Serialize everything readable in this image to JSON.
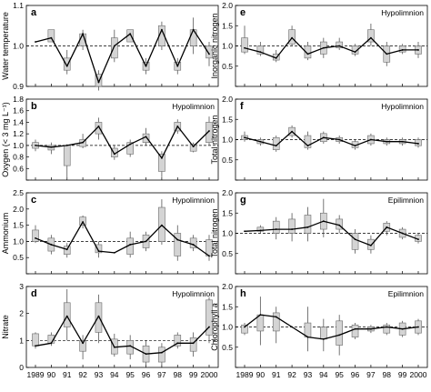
{
  "figure": {
    "x_tick_labels": [
      "1989",
      "90",
      "91",
      "92",
      "93",
      "94",
      "95",
      "96",
      "97",
      "98",
      "99",
      "2000"
    ],
    "box_color": "#d4d4d4",
    "line_color": "#000000"
  },
  "chart_data": [
    {
      "type": "line",
      "panel_letter": "a",
      "ylabel": "Water temperature",
      "subtitle": "",
      "ylim": [
        0.9,
        1.1
      ],
      "y_ticks": [
        0.9,
        1.0,
        1.1
      ],
      "y_tick_labels": [
        "0.9",
        "1.0",
        "1.1"
      ],
      "reference_line": 1.0,
      "x": [
        "1989",
        "90",
        "91",
        "92",
        "93",
        "94",
        "95",
        "96",
        "97",
        "98",
        "99",
        "2000"
      ],
      "series": [
        {
          "values": [
            1.01,
            1.02,
            0.95,
            1.03,
            0.91,
            1.0,
            1.03,
            0.95,
            1.04,
            0.95,
            1.04,
            0.98
          ]
        }
      ],
      "boxes": [
        null,
        [
          1.01,
          1.04
        ],
        [
          0.94,
          0.97
        ],
        [
          1.0,
          1.03
        ],
        [
          0.9,
          0.93
        ],
        [
          0.97,
          1.02
        ],
        [
          1.01,
          1.04
        ],
        [
          0.94,
          0.96
        ],
        [
          1.0,
          1.05
        ],
        [
          0.94,
          0.96
        ],
        [
          1.0,
          1.04
        ],
        [
          0.97,
          1.0
        ]
      ],
      "whiskers": [
        null,
        null,
        [
          0.93,
          0.99
        ],
        [
          0.99,
          1.04
        ],
        [
          0.89,
          0.94
        ],
        [
          0.96,
          1.04
        ],
        null,
        [
          0.93,
          0.97
        ],
        [
          0.99,
          1.06
        ],
        [
          0.93,
          0.97
        ],
        [
          0.98,
          1.07
        ],
        [
          0.95,
          1.01
        ]
      ]
    },
    {
      "type": "line",
      "panel_letter": "b",
      "ylabel": "Oxygen (< 3 mg L⁻¹)",
      "subtitle": "Hypolimnion",
      "ylim": [
        0.4,
        1.8
      ],
      "y_ticks": [
        0.4,
        0.6,
        0.8,
        1.0,
        1.2,
        1.4,
        1.6,
        1.8
      ],
      "y_tick_labels": [
        "",
        "0.6",
        "0.8",
        "1.0",
        "1.2",
        "1.4",
        "1.6",
        "1.8"
      ],
      "reference_line": 1.0,
      "x": [
        "1989",
        "90",
        "91",
        "92",
        "93",
        "94",
        "95",
        "96",
        "97",
        "98",
        "99",
        "2000"
      ],
      "series": [
        {
          "values": [
            1.0,
            0.97,
            1.0,
            1.05,
            1.33,
            0.85,
            1.02,
            1.15,
            0.78,
            1.33,
            0.98,
            1.25
          ]
        }
      ],
      "boxes": [
        [
          0.95,
          1.05
        ],
        [
          0.92,
          1.0
        ],
        [
          0.65,
          1.0
        ],
        [
          0.98,
          1.1
        ],
        [
          1.2,
          1.4
        ],
        [
          0.8,
          0.95
        ],
        [
          0.85,
          1.05
        ],
        [
          1.05,
          1.2
        ],
        [
          0.55,
          0.85
        ],
        [
          1.25,
          1.4
        ],
        [
          0.9,
          1.02
        ],
        [
          1.05,
          1.4
        ]
      ],
      "whiskers": [
        [
          0.9,
          1.1
        ],
        [
          0.85,
          1.05
        ],
        [
          0.42,
          1.02
        ],
        [
          0.95,
          1.2
        ],
        [
          1.1,
          1.48
        ],
        [
          0.75,
          1.0
        ],
        [
          0.8,
          1.1
        ],
        [
          1.0,
          1.3
        ],
        [
          0.45,
          0.9
        ],
        [
          1.2,
          1.45
        ],
        [
          0.88,
          1.05
        ],
        [
          1.0,
          1.5
        ]
      ]
    },
    {
      "type": "line",
      "panel_letter": "c",
      "ylabel": "Ammonium",
      "subtitle": "Hypolimnion",
      "ylim": [
        0,
        2.5
      ],
      "y_ticks": [
        0,
        0.5,
        1.0,
        1.5,
        2.0,
        2.5
      ],
      "y_tick_labels": [
        "",
        "0.5",
        "1.0",
        "1.5",
        "2.0",
        "2.5"
      ],
      "reference_line": 1.0,
      "x": [
        "1989",
        "90",
        "91",
        "92",
        "93",
        "94",
        "95",
        "96",
        "97",
        "98",
        "99",
        "2000"
      ],
      "series": [
        {
          "values": [
            1.1,
            0.9,
            0.75,
            1.6,
            0.7,
            0.65,
            0.9,
            1.0,
            1.5,
            1.05,
            0.9,
            0.55
          ]
        }
      ],
      "boxes": [
        [
          1.0,
          1.35
        ],
        [
          0.7,
          1.1
        ],
        [
          0.6,
          0.85
        ],
        [
          1.5,
          1.75
        ],
        [
          0.65,
          0.9
        ],
        null,
        [
          0.6,
          1.1
        ],
        [
          0.8,
          1.2
        ],
        [
          1.0,
          2.05
        ],
        [
          0.55,
          1.25
        ],
        [
          0.8,
          1.1
        ],
        [
          0.55,
          1.05
        ]
      ],
      "whiskers": [
        [
          0.95,
          1.5
        ],
        [
          0.6,
          1.2
        ],
        [
          0.5,
          0.95
        ],
        [
          1.4,
          1.8
        ],
        [
          0.5,
          1.0
        ],
        null,
        [
          0.5,
          1.3
        ],
        [
          0.7,
          1.3
        ],
        [
          0.9,
          2.3
        ],
        [
          0.4,
          1.5
        ],
        [
          0.7,
          1.2
        ],
        [
          0.4,
          1.2
        ]
      ]
    },
    {
      "type": "line",
      "panel_letter": "d",
      "ylabel": "Nitrate",
      "subtitle": "Hypolimnion",
      "ylim": [
        0,
        3
      ],
      "y_ticks": [
        0,
        1,
        2,
        3
      ],
      "y_tick_labels": [
        "0",
        "1",
        "2",
        "3"
      ],
      "reference_line": 1.0,
      "x": [
        "1989",
        "90",
        "91",
        "92",
        "93",
        "94",
        "95",
        "96",
        "97",
        "98",
        "99",
        "2000"
      ],
      "series": [
        {
          "values": [
            0.8,
            0.9,
            1.9,
            0.9,
            1.9,
            0.75,
            0.8,
            0.5,
            0.55,
            0.9,
            0.9,
            1.5
          ]
        }
      ],
      "boxes": [
        [
          0.8,
          1.25
        ],
        [
          0.9,
          1.2
        ],
        [
          1.5,
          2.4
        ],
        [
          0.6,
          1.0
        ],
        [
          1.3,
          2.4
        ],
        [
          0.5,
          1.05
        ],
        [
          0.5,
          1.0
        ],
        [
          0.2,
          0.8
        ],
        [
          0.2,
          0.75
        ],
        [
          0.8,
          1.2
        ],
        [
          0.6,
          1.1
        ],
        [
          1.2,
          2.5
        ]
      ],
      "whiskers": [
        [
          0.7,
          1.3
        ],
        [
          0.8,
          1.3
        ],
        [
          1.0,
          2.9
        ],
        [
          0.3,
          1.2
        ],
        [
          0.9,
          2.7
        ],
        [
          0.4,
          1.25
        ],
        [
          0.3,
          1.2
        ],
        [
          0.1,
          1.0
        ],
        [
          0.1,
          0.9
        ],
        [
          0.7,
          1.3
        ],
        [
          0.4,
          1.3
        ],
        [
          0.9,
          2.6
        ]
      ]
    },
    {
      "type": "line",
      "panel_letter": "e",
      "ylabel": "Inorganic nitrogen",
      "subtitle": "Hypolimnion",
      "ylim": [
        0,
        2.0
      ],
      "y_ticks": [
        0,
        0.5,
        1.0,
        1.5,
        2.0
      ],
      "y_tick_labels": [
        "",
        "0.5",
        "1.0",
        "1.5",
        "2.0"
      ],
      "reference_line": 1.0,
      "x": [
        "1989",
        "90",
        "91",
        "92",
        "93",
        "94",
        "95",
        "96",
        "97",
        "98",
        "99",
        "2000"
      ],
      "series": [
        {
          "values": [
            0.95,
            0.85,
            0.7,
            1.2,
            0.8,
            0.95,
            1.0,
            0.85,
            1.2,
            0.8,
            0.9,
            0.9
          ]
        }
      ],
      "boxes": [
        [
          0.85,
          1.2
        ],
        [
          0.8,
          1.0
        ],
        [
          0.65,
          0.8
        ],
        [
          1.05,
          1.4
        ],
        [
          0.7,
          1.0
        ],
        [
          0.8,
          1.1
        ],
        [
          0.95,
          1.1
        ],
        [
          0.8,
          1.0
        ],
        [
          1.1,
          1.4
        ],
        [
          0.6,
          1.0
        ],
        [
          0.85,
          1.0
        ],
        [
          0.8,
          1.0
        ]
      ],
      "whiskers": [
        [
          0.8,
          1.5
        ],
        [
          0.75,
          1.1
        ],
        [
          0.6,
          0.9
        ],
        [
          1.0,
          1.5
        ],
        [
          0.65,
          1.1
        ],
        [
          0.7,
          1.2
        ],
        [
          0.9,
          1.2
        ],
        [
          0.75,
          1.05
        ],
        [
          1.0,
          1.55
        ],
        [
          0.5,
          1.1
        ],
        [
          0.8,
          1.05
        ],
        [
          0.7,
          1.1
        ]
      ]
    },
    {
      "type": "line",
      "panel_letter": "f",
      "ylabel": "Total nitrogen",
      "subtitle": "Hypolimnion",
      "ylim": [
        0,
        2.0
      ],
      "y_ticks": [
        0,
        0.5,
        1.0,
        1.5,
        2.0
      ],
      "y_tick_labels": [
        "",
        "0.5",
        "1.0",
        "1.5",
        "2.0"
      ],
      "reference_line": 1.0,
      "x": [
        "1989",
        "90",
        "91",
        "92",
        "93",
        "94",
        "95",
        "96",
        "97",
        "98",
        "99",
        "2000"
      ],
      "series": [
        {
          "values": [
            1.05,
            0.95,
            0.85,
            1.2,
            0.85,
            1.05,
            1.0,
            0.85,
            1.0,
            0.95,
            0.95,
            0.9
          ]
        }
      ],
      "boxes": [
        [
          1.0,
          1.1
        ],
        [
          0.9,
          1.0
        ],
        [
          0.75,
          1.05
        ],
        [
          1.1,
          1.3
        ],
        [
          0.8,
          1.1
        ],
        [
          0.95,
          1.15
        ],
        [
          0.95,
          1.05
        ],
        [
          0.8,
          0.95
        ],
        [
          0.9,
          1.1
        ],
        [
          0.9,
          1.0
        ],
        [
          0.9,
          1.0
        ],
        [
          0.85,
          1.0
        ]
      ],
      "whiskers": [
        [
          0.95,
          1.2
        ],
        [
          0.85,
          1.05
        ],
        [
          0.7,
          1.1
        ],
        [
          1.05,
          1.35
        ],
        [
          0.75,
          1.2
        ],
        [
          0.9,
          1.2
        ],
        [
          0.9,
          1.1
        ],
        [
          0.75,
          1.0
        ],
        [
          0.85,
          1.15
        ],
        [
          0.85,
          1.05
        ],
        [
          0.85,
          1.05
        ],
        [
          0.8,
          1.05
        ]
      ]
    },
    {
      "type": "line",
      "panel_letter": "g",
      "ylabel": "Total nitrogen",
      "subtitle": "Epilimnion",
      "ylim": [
        0,
        2.0
      ],
      "y_ticks": [
        0,
        0.5,
        1.0,
        1.5,
        2.0
      ],
      "y_tick_labels": [
        "",
        "0.5",
        "1.0",
        "1.5",
        "2.0"
      ],
      "reference_line": 1.0,
      "x": [
        "1989",
        "90",
        "91",
        "92",
        "93",
        "94",
        "95",
        "96",
        "97",
        "98",
        "99",
        "2000"
      ],
      "series": [
        {
          "values": [
            1.05,
            1.07,
            1.1,
            1.1,
            1.15,
            1.3,
            1.2,
            0.85,
            0.7,
            1.15,
            1.0,
            0.85
          ]
        }
      ],
      "boxes": [
        null,
        [
          1.05,
          1.15
        ],
        [
          1.0,
          1.3
        ],
        [
          1.0,
          1.35
        ],
        [
          1.0,
          1.45
        ],
        [
          1.1,
          1.5
        ],
        [
          1.1,
          1.35
        ],
        [
          0.6,
          1.0
        ],
        [
          0.6,
          0.85
        ],
        [
          1.05,
          1.25
        ],
        [
          0.9,
          1.1
        ],
        [
          0.8,
          0.95
        ]
      ],
      "whiskers": [
        null,
        [
          1.0,
          1.2
        ],
        [
          0.85,
          1.4
        ],
        [
          0.8,
          1.5
        ],
        [
          0.8,
          1.65
        ],
        [
          0.9,
          1.85
        ],
        [
          1.0,
          1.45
        ],
        [
          0.5,
          1.1
        ],
        [
          0.5,
          0.95
        ],
        [
          0.95,
          1.3
        ],
        [
          0.85,
          1.15
        ],
        [
          0.75,
          1.0
        ]
      ]
    },
    {
      "type": "line",
      "panel_letter": "h",
      "ylabel": "Chlorophyll a",
      "subtitle": "Epilimnion",
      "ylim": [
        0,
        2.0
      ],
      "y_ticks": [
        0,
        0.5,
        1.0,
        1.5,
        2.0
      ],
      "y_tick_labels": [
        "",
        "0.5",
        "1.0",
        "1.5",
        "2.0"
      ],
      "reference_line": 1.0,
      "x": [
        "1989",
        "90",
        "91",
        "92",
        "93",
        "94",
        "95",
        "96",
        "97",
        "98",
        "99",
        "2000"
      ],
      "series": [
        {
          "values": [
            1.0,
            1.3,
            1.25,
            1.0,
            0.75,
            0.7,
            0.8,
            0.95,
            0.95,
            1.0,
            0.95,
            1.0
          ]
        }
      ],
      "boxes": [
        [
          0.85,
          1.05
        ],
        [
          0.9,
          1.3
        ],
        [
          0.9,
          1.35
        ],
        null,
        [
          0.75,
          1.1
        ],
        [
          0.7,
          1.0
        ],
        [
          0.55,
          1.15
        ],
        [
          0.75,
          1.05
        ],
        [
          0.9,
          1.0
        ],
        [
          0.85,
          1.05
        ],
        [
          0.8,
          1.1
        ],
        [
          0.85,
          1.15
        ]
      ],
      "whiskers": [
        [
          0.8,
          1.1
        ],
        [
          0.55,
          1.75
        ],
        [
          0.6,
          1.5
        ],
        null,
        [
          0.4,
          1.5
        ],
        [
          0.4,
          1.2
        ],
        [
          0.3,
          1.3
        ],
        [
          0.7,
          1.1
        ],
        [
          0.85,
          1.05
        ],
        [
          0.8,
          1.1
        ],
        [
          0.75,
          1.15
        ],
        [
          0.8,
          1.2
        ]
      ]
    }
  ]
}
